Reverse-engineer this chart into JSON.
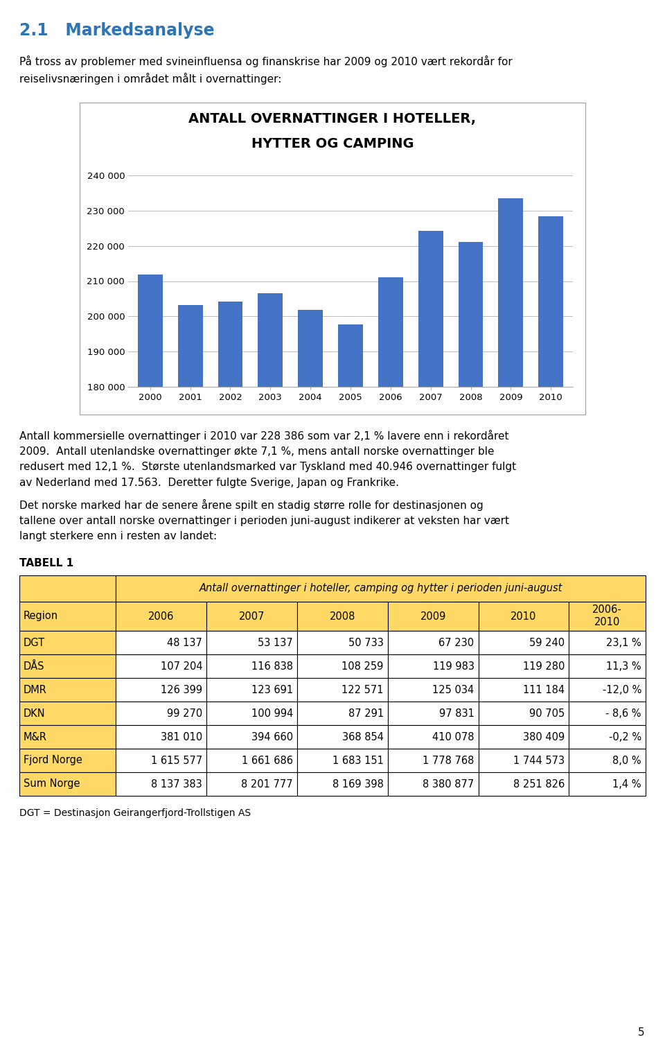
{
  "page_title": "2.1   Markedsanalyse",
  "page_number": "5",
  "intro_text": "På tross av problemer med svineinfluensa og finanskrise har 2009 og 2010 vært rekordår for\nreiselivsnæringen i området målt i overnattinger:",
  "chart_title_line1": "ANTALL OVERNATTINGER I HOTELLER,",
  "chart_title_line2": "HYTTER OG CAMPING",
  "years": [
    2000,
    2001,
    2002,
    2003,
    2004,
    2005,
    2006,
    2007,
    2008,
    2009,
    2010
  ],
  "values": [
    211800,
    203200,
    204200,
    206500,
    201800,
    197800,
    211000,
    224200,
    221200,
    233500,
    228386
  ],
  "bar_color": "#4472C4",
  "ylim_min": 180000,
  "ylim_max": 240000,
  "yticks": [
    180000,
    190000,
    200000,
    210000,
    220000,
    230000,
    240000
  ],
  "ytick_labels": [
    "180 000",
    "190 000",
    "200 000",
    "210 000",
    "220 000",
    "230 000",
    "240 000"
  ],
  "body_text1": "Antall kommersielle overnattinger i 2010 var 228 386 som var 2,1 % lavere enn i rekordåret\n2009.  Antall utenlandske overnattinger økte 7,1 %, mens antall norske overnattinger ble\nredusert med 12,1 %.  Største utenlandsmarked var Tyskland med 40.946 overnattinger fulgt\nav Nederland med 17.563.  Deretter fulgte Sverige, Japan og Frankrike.",
  "body_text2": "Det norske marked har de senere årene spilt en stadig større rolle for destinasjonen og\ntallene over antall norske overnattinger i perioden juni-august indikerer at veksten har vært\nlangt sterkere enn i resten av landet:",
  "table_label": "TABELL 1",
  "footer_text": "DGT = Destinasjon Geirangerfjord-Trollstigen AS",
  "table_header_top": "Antall overnattinger i hoteller, camping og hytter i perioden juni-august",
  "table_col_headers": [
    "Region",
    "2006",
    "2007",
    "2008",
    "2009",
    "2010",
    "2006-\n2010"
  ],
  "table_rows": [
    [
      "DGT",
      "48 137",
      "53 137",
      "50 733",
      "67 230",
      "59 240",
      "23,1 %"
    ],
    [
      "DÅS",
      "107 204",
      "116 838",
      "108 259",
      "119 983",
      "119 280",
      "11,3 %"
    ],
    [
      "DMR",
      "126 399",
      "123 691",
      "122 571",
      "125 034",
      "111 184",
      "-12,0 %"
    ],
    [
      "DKN",
      "99 270",
      "100 994",
      "87 291",
      "97 831",
      "90 705",
      "- 8,6 %"
    ],
    [
      "M&R",
      "381 010",
      "394 660",
      "368 854",
      "410 078",
      "380 409",
      "-0,2 %"
    ],
    [
      "Fjord Norge",
      "1 615 577",
      "1 661 686",
      "1 683 151",
      "1 778 768",
      "1 744 573",
      "8,0 %"
    ],
    [
      "Sum Norge",
      "8 137 383",
      "8 201 777",
      "8 169 398",
      "8 380 877",
      "8 251 826",
      "1,4 %"
    ]
  ],
  "orange_bg": "#FFD966",
  "white_bg": "#FFFFFF",
  "title_color": "#2E75B6",
  "border_color": "#000000",
  "grid_color": "#BBBBBB",
  "chart_border_color": "#AAAAAA"
}
